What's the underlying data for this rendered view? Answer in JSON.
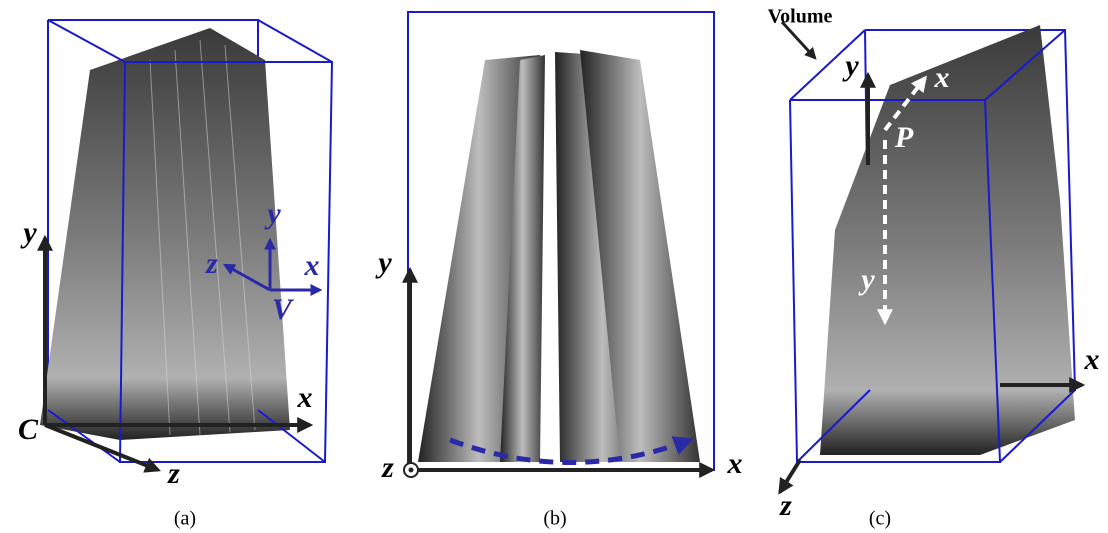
{
  "panels": [
    {
      "caption": "(a)",
      "labels": [
        "y",
        "x",
        "z",
        "C",
        "y",
        "x",
        "z",
        "V"
      ]
    },
    {
      "caption": "(b)",
      "labels": [
        "y",
        "x",
        "z"
      ]
    },
    {
      "caption": "(c)",
      "labels": [
        "Volume",
        "y",
        "x",
        "z",
        "P",
        "x",
        "y"
      ]
    }
  ]
}
